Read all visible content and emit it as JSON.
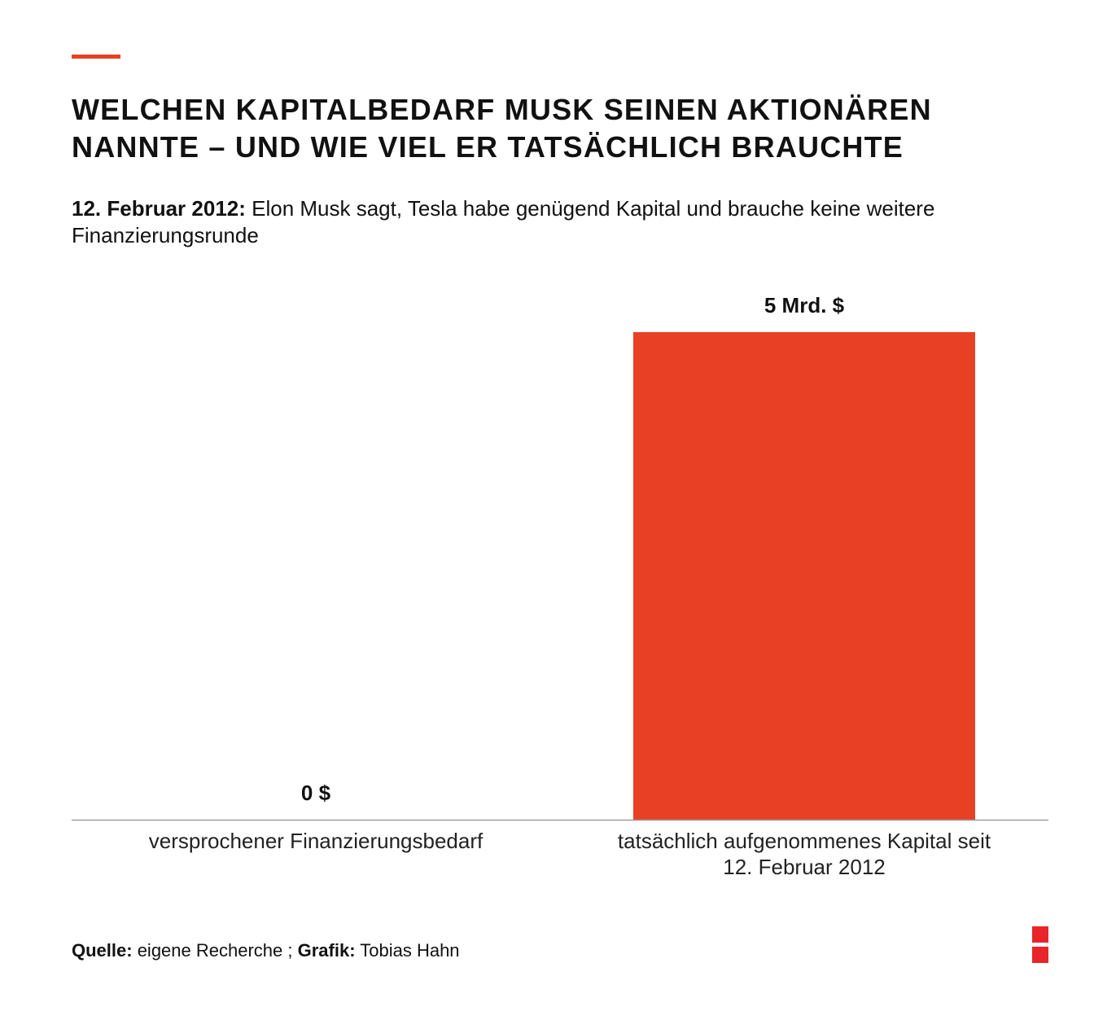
{
  "header": {
    "title_line1": "Welchen Kapitalbedarf Musk seinen Aktionären",
    "title_line2": "nannte – und wie viel er tatsächlich brauchte",
    "subtitle_lead": "12. Februar 2012:",
    "subtitle_text": " Elon Musk sagt, Tesla habe genügend Kapital und brauche keine weitere Finanzierungsrunde"
  },
  "chart_data": {
    "type": "bar",
    "title": "Welchen Kapitalbedarf Musk seinen Aktionären nannte – und wie viel er tatsächlich brauchte",
    "categories": [
      [
        "versprochener Finanzierungsbedarf"
      ],
      [
        "tatsächlich aufgenommenes Kapital seit",
        "12. Februar 2012"
      ]
    ],
    "values": [
      0,
      5
    ],
    "value_labels": [
      "0 $",
      "5 Mrd. $"
    ],
    "unit": "Mrd. $",
    "ylim": [
      0,
      5
    ],
    "grid": false,
    "bar_color": "#e84025",
    "baseline_color": "#9e9e9e"
  },
  "footer": {
    "source_label": "Quelle:",
    "source_text": " eigene Recherche ; ",
    "credit_label": "Grafik:",
    "credit_text": " Tobias Hahn"
  },
  "colors": {
    "accent": "#e84025",
    "logo": "#e8252b"
  }
}
